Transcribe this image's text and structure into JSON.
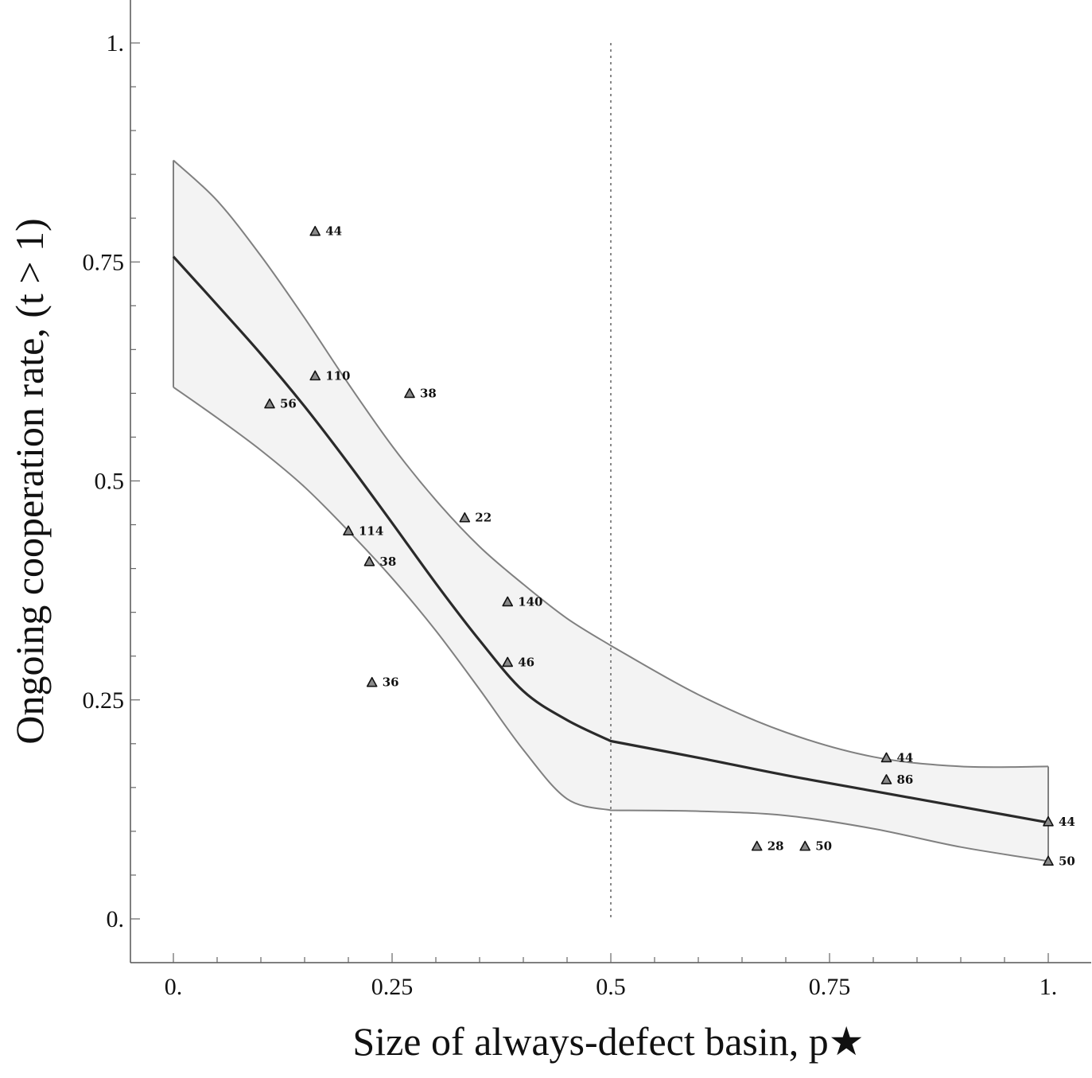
{
  "chart_data": {
    "type": "scatter",
    "xlabel": "Size of always-defect basin, p★",
    "ylabel": "Ongoing cooperation rate, (t > 1)",
    "xlim": [
      0,
      1
    ],
    "ylim": [
      0,
      1
    ],
    "x_ticks": [
      "0.",
      "0.25",
      "0.5",
      "0.75",
      "1."
    ],
    "y_ticks": [
      "0.",
      "0.25",
      "0.5",
      "0.75",
      "1."
    ],
    "reference_line": {
      "x": 0.5,
      "style": "dotted"
    },
    "points": [
      {
        "x": 0.162,
        "y": 0.785,
        "label": "44"
      },
      {
        "x": 0.162,
        "y": 0.62,
        "label": "110"
      },
      {
        "x": 0.11,
        "y": 0.588,
        "label": "56"
      },
      {
        "x": 0.27,
        "y": 0.6,
        "label": "38"
      },
      {
        "x": 0.333,
        "y": 0.458,
        "label": "22"
      },
      {
        "x": 0.2,
        "y": 0.443,
        "label": "114"
      },
      {
        "x": 0.224,
        "y": 0.408,
        "label": "38"
      },
      {
        "x": 0.382,
        "y": 0.362,
        "label": "140"
      },
      {
        "x": 0.382,
        "y": 0.293,
        "label": "46"
      },
      {
        "x": 0.227,
        "y": 0.27,
        "label": "36"
      },
      {
        "x": 0.815,
        "y": 0.184,
        "label": "44"
      },
      {
        "x": 0.815,
        "y": 0.159,
        "label": "86"
      },
      {
        "x": 1.0,
        "y": 0.111,
        "label": "44"
      },
      {
        "x": 0.667,
        "y": 0.083,
        "label": "28"
      },
      {
        "x": 0.722,
        "y": 0.083,
        "label": "50"
      },
      {
        "x": 1.0,
        "y": 0.066,
        "label": "50"
      }
    ],
    "fit_line": {
      "x": [
        0,
        0.05,
        0.1,
        0.15,
        0.2,
        0.25,
        0.3,
        0.35,
        0.4,
        0.45,
        0.5,
        0.6,
        0.7,
        0.8,
        0.9,
        1.0
      ],
      "y": [
        0.756,
        0.701,
        0.645,
        0.585,
        0.52,
        0.452,
        0.383,
        0.318,
        0.26,
        0.227,
        0.203,
        0.184,
        0.164,
        0.146,
        0.128,
        0.11
      ]
    },
    "band_upper": {
      "x": [
        0,
        0.05,
        0.1,
        0.15,
        0.2,
        0.25,
        0.3,
        0.35,
        0.4,
        0.45,
        0.5,
        0.6,
        0.7,
        0.8,
        0.9,
        1.0
      ],
      "y": [
        0.866,
        0.82,
        0.757,
        0.686,
        0.611,
        0.54,
        0.478,
        0.425,
        0.382,
        0.343,
        0.312,
        0.256,
        0.213,
        0.185,
        0.174,
        0.174
      ]
    },
    "band_lower": {
      "x": [
        0,
        0.05,
        0.1,
        0.15,
        0.2,
        0.25,
        0.3,
        0.35,
        0.4,
        0.45,
        0.5,
        0.6,
        0.7,
        0.8,
        0.9,
        1.0
      ],
      "y": [
        0.607,
        0.572,
        0.535,
        0.493,
        0.443,
        0.389,
        0.329,
        0.262,
        0.193,
        0.137,
        0.124,
        0.123,
        0.118,
        0.103,
        0.082,
        0.066
      ]
    },
    "grid": false,
    "legend": "none"
  }
}
